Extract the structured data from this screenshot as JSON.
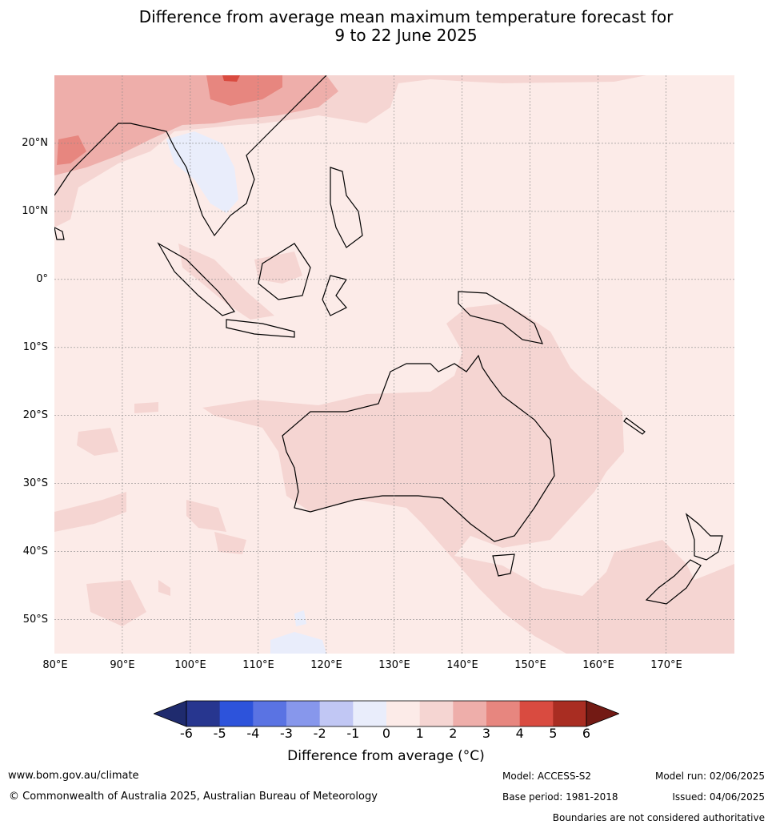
{
  "title": {
    "line1": "Difference from average mean maximum temperature forecast for",
    "line2": "9 to 22 June 2025"
  },
  "map": {
    "lon_range": [
      80,
      180
    ],
    "lat_range": [
      -55,
      30
    ],
    "lat_labels": [
      {
        "value": 20,
        "text": "20°N"
      },
      {
        "value": 10,
        "text": "10°N"
      },
      {
        "value": 0,
        "text": "0°"
      },
      {
        "value": -10,
        "text": "10°S"
      },
      {
        "value": -20,
        "text": "20°S"
      },
      {
        "value": -30,
        "text": "30°S"
      },
      {
        "value": -40,
        "text": "40°S"
      },
      {
        "value": -50,
        "text": "50°S"
      }
    ],
    "lon_labels": [
      {
        "value": 80,
        "text": "80°E"
      },
      {
        "value": 90,
        "text": "90°E"
      },
      {
        "value": 100,
        "text": "100°E"
      },
      {
        "value": 110,
        "text": "110°E"
      },
      {
        "value": 120,
        "text": "120°E"
      },
      {
        "value": 130,
        "text": "130°E"
      },
      {
        "value": 140,
        "text": "140°E"
      },
      {
        "value": 150,
        "text": "150°E"
      },
      {
        "value": 160,
        "text": "160°E"
      },
      {
        "value": 170,
        "text": "170°E"
      }
    ],
    "colors": {
      "background_0_1": "#fcebe8",
      "band_1_2": "#f5d5d2",
      "band_2_3": "#eeaeaa",
      "band_3_4": "#e7867f",
      "band_4_5": "#d94b40",
      "band_m1_0": "#e9edfb",
      "band_m2_m1": "#c1c7f4"
    }
  },
  "colorbar": {
    "ticks": [
      "-6",
      "-5",
      "-4",
      "-3",
      "-2",
      "-1",
      "0",
      "1",
      "2",
      "3",
      "4",
      "5",
      "6"
    ],
    "colors": [
      "#27368f",
      "#2d53db",
      "#5a73e3",
      "#8797ec",
      "#c1c7f4",
      "#e9edfb",
      "#fcebe8",
      "#f5d5d2",
      "#eeaeaa",
      "#e7867f",
      "#d94b40",
      "#a92d22"
    ],
    "under_color": "#1f2b6e",
    "over_color": "#731a14",
    "label": "Difference from average (°C)"
  },
  "footer": {
    "url": "www.bom.gov.au/climate",
    "copyright": "© Commonwealth of Australia 2025, Australian Bureau of Meteorology",
    "model": "Model: ACCESS-S2",
    "base_period": "Base period: 1981-2018",
    "model_run": "Model run: 02/06/2025",
    "issued": "Issued: 04/06/2025",
    "disclaimer": "Boundaries are not considered authoritative"
  }
}
